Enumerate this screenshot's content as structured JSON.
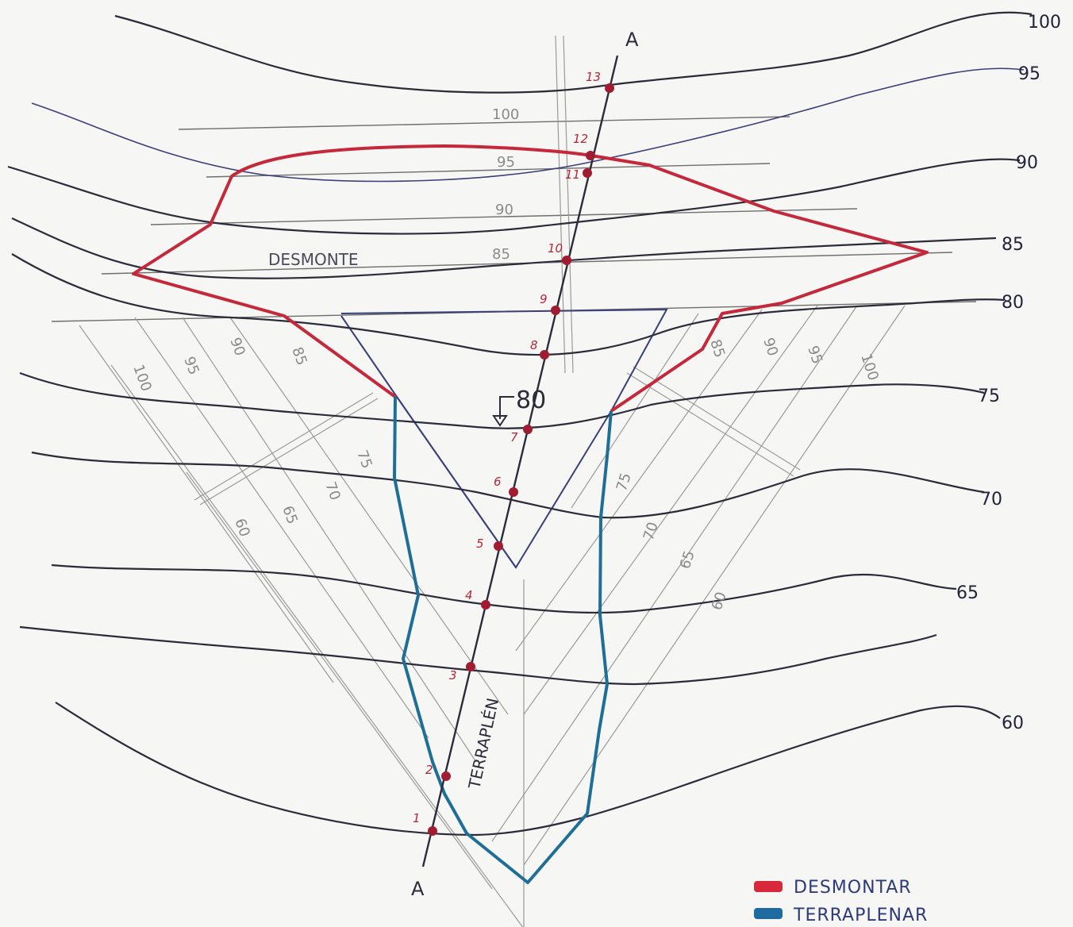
{
  "contour_labels": [
    "100",
    "95",
    "90",
    "85",
    "80",
    "75",
    "70",
    "65",
    "60"
  ],
  "guide_labels_horizontal": [
    "100",
    "95",
    "90",
    "85"
  ],
  "guide_labels_left": [
    "100",
    "95",
    "90",
    "85",
    "75",
    "70",
    "65",
    "60"
  ],
  "guide_labels_right": [
    "85",
    "90",
    "95",
    "100",
    "75",
    "70",
    "65",
    "60"
  ],
  "section_label": "A",
  "section_label_top": "A",
  "point_labels": [
    "1",
    "2",
    "3",
    "4",
    "5",
    "6",
    "7",
    "8",
    "9",
    "10",
    "11",
    "12",
    "13"
  ],
  "elevation_marker": "80",
  "zone_labels": {
    "cut": "DESMONTE",
    "fill": "TERRAPLÉN"
  },
  "legend": {
    "items": [
      {
        "label": "DESMONTAR",
        "color": "#d8283c"
      },
      {
        "label": "TERRAPLENAR",
        "color": "#1f6a9e"
      }
    ]
  },
  "colors": {
    "cut_outline": "#c4283a",
    "fill_outline": "#1e6e96",
    "points": "#a01c30"
  }
}
